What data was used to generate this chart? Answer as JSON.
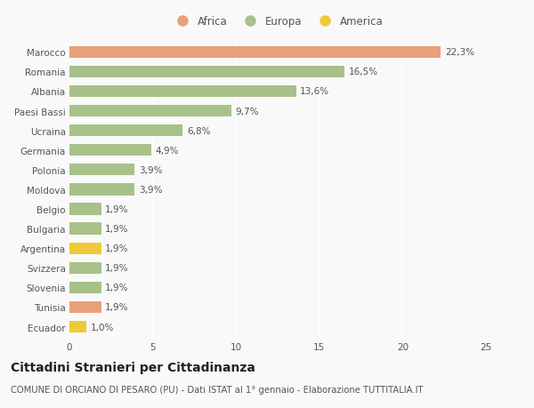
{
  "categories": [
    "Ecuador",
    "Tunisia",
    "Slovenia",
    "Svizzera",
    "Argentina",
    "Bulgaria",
    "Belgio",
    "Moldova",
    "Polonia",
    "Germania",
    "Ucraina",
    "Paesi Bassi",
    "Albania",
    "Romania",
    "Marocco"
  ],
  "values": [
    1.0,
    1.9,
    1.9,
    1.9,
    1.9,
    1.9,
    1.9,
    3.9,
    3.9,
    4.9,
    6.8,
    9.7,
    13.6,
    16.5,
    22.3
  ],
  "labels": [
    "1,0%",
    "1,9%",
    "1,9%",
    "1,9%",
    "1,9%",
    "1,9%",
    "1,9%",
    "3,9%",
    "3,9%",
    "4,9%",
    "6,8%",
    "9,7%",
    "13,6%",
    "16,5%",
    "22,3%"
  ],
  "colors": [
    "#f0c93a",
    "#e8a07a",
    "#a8c18a",
    "#a8c18a",
    "#f0c93a",
    "#a8c18a",
    "#a8c18a",
    "#a8c18a",
    "#a8c18a",
    "#a8c18a",
    "#a8c18a",
    "#a8c18a",
    "#a8c18a",
    "#a8c18a",
    "#e8a07a"
  ],
  "legend_labels": [
    "Africa",
    "Europa",
    "America"
  ],
  "legend_colors": [
    "#e8a07a",
    "#a8c18a",
    "#f0c93a"
  ],
  "title": "Cittadini Stranieri per Cittadinanza",
  "subtitle": "COMUNE DI ORCIANO DI PESARO (PU) - Dati ISTAT al 1° gennaio - Elaborazione TUTTITALIA.IT",
  "xlim": [
    0,
    25
  ],
  "xticks": [
    0,
    5,
    10,
    15,
    20,
    25
  ],
  "background_color": "#f9f9f9",
  "bar_height": 0.6,
  "label_fontsize": 7.5,
  "tick_fontsize": 7.5,
  "title_fontsize": 10,
  "subtitle_fontsize": 7.2,
  "grid_color": "#ffffff",
  "text_color": "#555555",
  "title_color": "#222222"
}
